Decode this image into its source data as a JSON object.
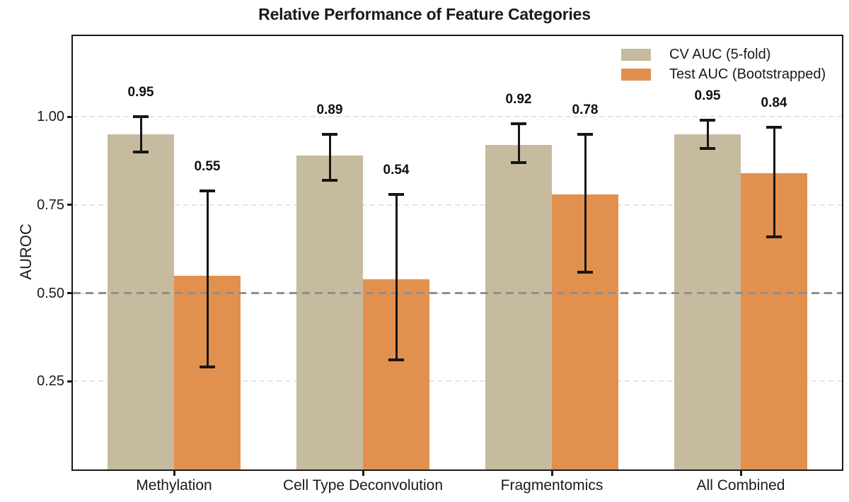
{
  "figure": {
    "title": "Relative Performance of Feature Categories"
  },
  "chart_data": {
    "type": "bar",
    "title": "Relative Performance of Feature Categories",
    "xlabel": "",
    "ylabel": "AUROC",
    "categories": [
      "Methylation",
      "Cell Type Deconvolution",
      "Fragmentomics",
      "All Combined"
    ],
    "series": [
      {
        "name": "CV AUC (5-fold)",
        "color": "#c6bb9f",
        "values": [
          0.95,
          0.89,
          0.92,
          0.95
        ],
        "error_low": [
          0.9,
          0.82,
          0.87,
          0.91
        ],
        "error_high": [
          1.0,
          0.95,
          0.98,
          0.99
        ],
        "value_labels": [
          "0.95",
          "0.89",
          "0.92",
          "0.95"
        ]
      },
      {
        "name": "Test AUC (Bootstrapped)",
        "color": "#e2904e",
        "values": [
          0.55,
          0.54,
          0.78,
          0.84
        ],
        "error_low": [
          0.29,
          0.31,
          0.56,
          0.66
        ],
        "error_high": [
          0.79,
          0.78,
          0.95,
          0.97
        ],
        "value_labels": [
          "0.55",
          "0.54",
          "0.78",
          "0.84"
        ]
      }
    ],
    "yticks": [
      0.25,
      0.5,
      0.75,
      1.0
    ],
    "ytick_labels": [
      "0.25",
      "0.50",
      "0.75",
      "1.00"
    ],
    "ylim": [
      0,
      1.23
    ],
    "grid": true,
    "reference_line": {
      "value": 0.5,
      "color": "#8f8f8f",
      "style": "dashed"
    },
    "legend_position": "upper right",
    "colors": {
      "text": "#1a1a1a",
      "grid": "#e6e6e6",
      "error_bar": "#161616",
      "cv_bar": "#c6bb9f",
      "test_bar": "#e2904e"
    }
  }
}
